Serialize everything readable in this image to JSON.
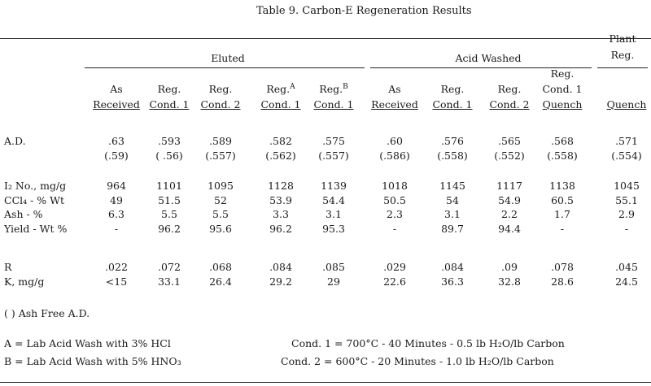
{
  "title": "Table 9.  Carbon-E Regeneration Results",
  "groups": {
    "eluted": "Eluted",
    "acid_washed": "Acid Washed",
    "plant_reg_top": "Plant",
    "plant_reg_bottom": "Reg."
  },
  "columns": [
    {
      "l1": "",
      "l2": "As",
      "l3": "Received",
      "sup": ""
    },
    {
      "l1": "",
      "l2": "Reg.",
      "l3": "Cond. 1",
      "sup": ""
    },
    {
      "l1": "",
      "l2": "Reg.",
      "l3": "Cond. 2",
      "sup": ""
    },
    {
      "l1": "",
      "l2": "Reg.",
      "l3": "Cond. 1",
      "sup": "A"
    },
    {
      "l1": "",
      "l2": "Reg.",
      "l3": "Cond. 1",
      "sup": "B"
    },
    {
      "l1": "",
      "l2": "As",
      "l3": "Received",
      "sup": ""
    },
    {
      "l1": "",
      "l2": "Reg.",
      "l3": "Cond. 1",
      "sup": ""
    },
    {
      "l1": "",
      "l2": "Reg.",
      "l3": "Cond. 2",
      "sup": ""
    },
    {
      "l1": "Reg.",
      "l2": "Cond. 1",
      "l3": "Quench",
      "sup": ""
    },
    {
      "l1": "",
      "l2": "",
      "l3": "Quench",
      "sup": ""
    }
  ],
  "rows": [
    {
      "label": "A.D.",
      "values": [
        ".63",
        ".593",
        ".589",
        ".582",
        ".575",
        ".60",
        ".576",
        ".565",
        ".568",
        ".571"
      ]
    },
    {
      "label": "",
      "values": [
        "(.59)",
        "( .56)",
        "(.557)",
        "(.562)",
        "(.557)",
        "(.586)",
        "(.558)",
        "(.552)",
        "(.558)",
        "(.554)"
      ]
    },
    {
      "label": "I₂ No., mg/g",
      "values": [
        "964",
        "1101",
        "1095",
        "1128",
        "1139",
        "1018",
        "1145",
        "1117",
        "1138",
        "1045"
      ]
    },
    {
      "label": "CCl₄ - % Wt",
      "values": [
        "49",
        "51.5",
        "52",
        "53.9",
        "54.4",
        "50.5",
        "54",
        "54.9",
        "60.5",
        "55.1"
      ]
    },
    {
      "label": "Ash - %",
      "values": [
        "6.3",
        "5.5",
        "5.5",
        "3.3",
        "3.1",
        "2.3",
        "3.1",
        "2.2",
        "1.7",
        "2.9"
      ]
    },
    {
      "label": "Yield - Wt %",
      "values": [
        "-",
        "96.2",
        "95.6",
        "96.2",
        "95.3",
        "-",
        "89.7",
        "94.4",
        "-",
        "-"
      ]
    },
    {
      "label": "R",
      "values": [
        ".022",
        ".072",
        ".068",
        ".084",
        ".085",
        ".029",
        ".084",
        ".09",
        ".078",
        ".045"
      ]
    },
    {
      "label": "K, mg/g",
      "values": [
        "<15",
        "33.1",
        "26.4",
        "29.2",
        "29",
        "22.6",
        "36.3",
        "32.8",
        "28.6",
        "24.5"
      ]
    }
  ],
  "footnotes": {
    "ash_free": "(  ) Ash Free A.D.",
    "note_a": "A = Lab Acid Wash with 3% HCl",
    "note_b": "B = Lab Acid Wash with 5% HNO₃",
    "cond1": "Cond. 1 = 700°C - 40 Minutes - 0.5 lb H₂O/lb Carbon",
    "cond2": "Cond. 2 = 600°C - 20 Minutes - 1.0 lb H₂O/lb Carbon"
  }
}
